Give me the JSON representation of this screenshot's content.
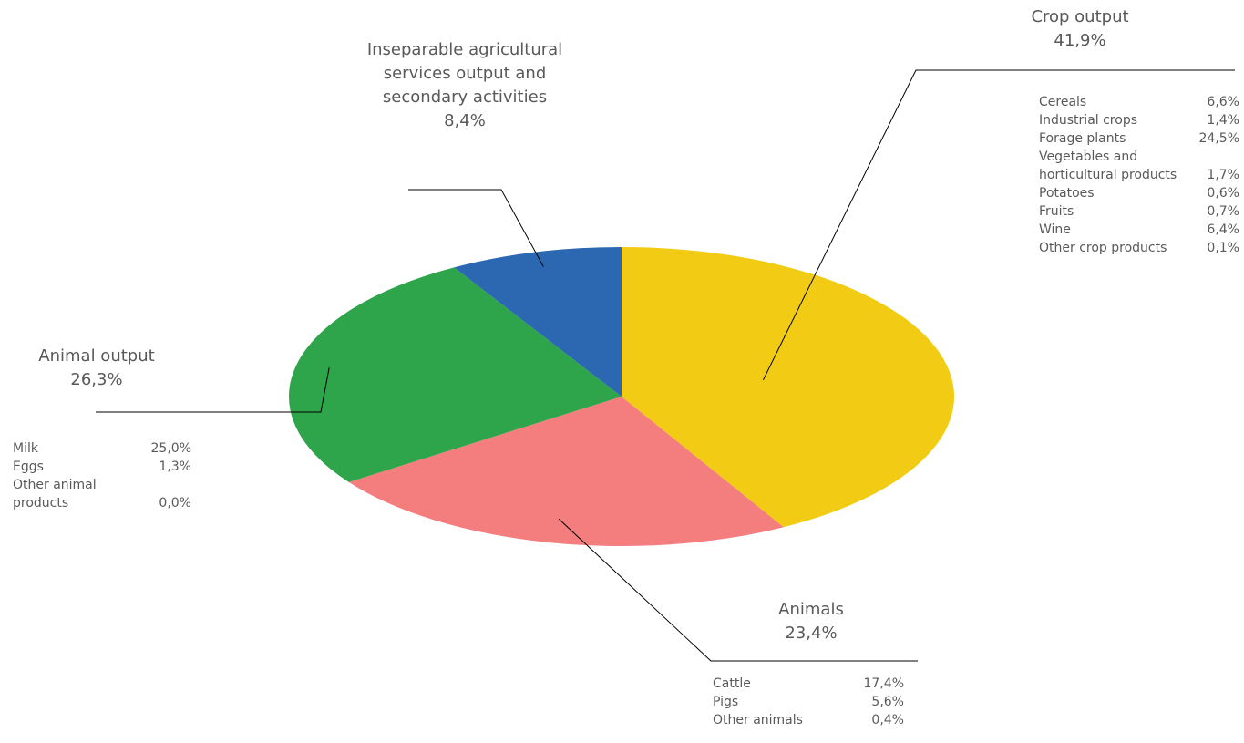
{
  "chart_data": {
    "type": "pie",
    "title": "",
    "slices": [
      {
        "name": "Crop output",
        "value": 41.9,
        "display": "41,9%",
        "color": "#f2cb15",
        "breakdown": [
          {
            "label": "Cereals",
            "value": "6,6%"
          },
          {
            "label": "Industrial crops",
            "value": "1,4%"
          },
          {
            "label": "Forage plants",
            "value": "24,5%"
          },
          {
            "label": "Vegetables and horticultural products",
            "value": "1,7%"
          },
          {
            "label": "Potatoes",
            "value": "0,6%"
          },
          {
            "label": "Fruits",
            "value": "0,7%"
          },
          {
            "label": "Wine",
            "value": "6,4%"
          },
          {
            "label": "Other crop products",
            "value": "0,1%"
          }
        ]
      },
      {
        "name": "Animals",
        "value": 23.4,
        "display": "23,4%",
        "color": "#f47e7e",
        "breakdown": [
          {
            "label": "Cattle",
            "value": "17,4%"
          },
          {
            "label": "Pigs",
            "value": "5,6%"
          },
          {
            "label": "Other animals",
            "value": "0,4%"
          }
        ]
      },
      {
        "name": "Animal output",
        "value": 26.3,
        "display": "26,3%",
        "color": "#2ea44b",
        "breakdown": [
          {
            "label": "Milk",
            "value": "25,0%"
          },
          {
            "label": "Eggs",
            "value": "1,3%"
          },
          {
            "label": "Other animal products",
            "value": "0,0%"
          }
        ]
      },
      {
        "name": "Inseparable agricultural services output and secondary activities",
        "value": 8.4,
        "display": "8,4%",
        "color": "#2c68b1",
        "breakdown": []
      }
    ],
    "legend": "none"
  }
}
